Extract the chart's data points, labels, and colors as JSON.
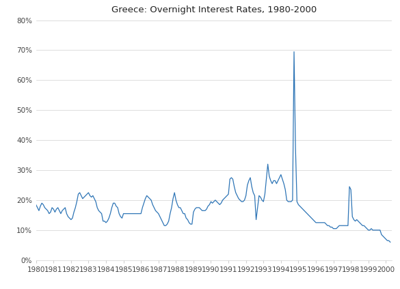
{
  "title": "Greece: Overnight Interest Rates, 1980-2000",
  "line_color": "#2e75b6",
  "background_color": "#ffffff",
  "ylim": [
    0,
    0.8
  ],
  "yticks": [
    0.0,
    0.1,
    0.2,
    0.3,
    0.4,
    0.5,
    0.6,
    0.7,
    0.8
  ],
  "ytick_labels": [
    "0%",
    "10%",
    "20%",
    "30%",
    "40%",
    "50%",
    "60%",
    "70%",
    "80%"
  ],
  "xtick_labels": [
    "1980",
    "1981",
    "1982",
    "1983",
    "1984",
    "1985",
    "1986",
    "1987",
    "1988",
    "1989",
    "1990",
    "1991",
    "1992",
    "1993",
    "1994",
    "1995",
    "1996",
    "1997",
    "1998",
    "1999",
    "2000"
  ],
  "series": [
    1980.0,
    0.185,
    1980.083,
    0.175,
    1980.167,
    0.165,
    1980.25,
    0.18,
    1980.333,
    0.19,
    1980.417,
    0.185,
    1980.5,
    0.175,
    1980.583,
    0.17,
    1980.667,
    0.165,
    1980.75,
    0.155,
    1980.833,
    0.16,
    1980.917,
    0.175,
    1981.0,
    0.17,
    1981.083,
    0.16,
    1981.167,
    0.17,
    1981.25,
    0.175,
    1981.333,
    0.165,
    1981.417,
    0.155,
    1981.5,
    0.165,
    1981.583,
    0.17,
    1981.667,
    0.175,
    1981.75,
    0.155,
    1981.833,
    0.145,
    1981.917,
    0.14,
    1982.0,
    0.135,
    1982.083,
    0.14,
    1982.167,
    0.16,
    1982.25,
    0.175,
    1982.333,
    0.195,
    1982.417,
    0.22,
    1982.5,
    0.225,
    1982.583,
    0.215,
    1982.667,
    0.205,
    1982.75,
    0.21,
    1982.833,
    0.215,
    1982.917,
    0.22,
    1983.0,
    0.225,
    1983.083,
    0.215,
    1983.167,
    0.21,
    1983.25,
    0.215,
    1983.333,
    0.205,
    1983.417,
    0.195,
    1983.5,
    0.175,
    1983.583,
    0.165,
    1983.667,
    0.16,
    1983.75,
    0.155,
    1983.833,
    0.13,
    1983.917,
    0.13,
    1984.0,
    0.125,
    1984.083,
    0.13,
    1984.167,
    0.14,
    1984.25,
    0.155,
    1984.333,
    0.175,
    1984.417,
    0.19,
    1984.5,
    0.19,
    1984.583,
    0.18,
    1984.667,
    0.175,
    1984.75,
    0.155,
    1984.833,
    0.145,
    1984.917,
    0.14,
    1985.0,
    0.155,
    1985.083,
    0.155,
    1985.167,
    0.155,
    1985.25,
    0.155,
    1985.333,
    0.155,
    1985.417,
    0.155,
    1985.5,
    0.155,
    1985.583,
    0.155,
    1985.667,
    0.155,
    1985.75,
    0.155,
    1985.833,
    0.155,
    1985.917,
    0.155,
    1986.0,
    0.155,
    1986.083,
    0.175,
    1986.167,
    0.19,
    1986.25,
    0.205,
    1986.333,
    0.215,
    1986.417,
    0.21,
    1986.5,
    0.205,
    1986.583,
    0.2,
    1986.667,
    0.185,
    1986.75,
    0.175,
    1986.833,
    0.165,
    1986.917,
    0.16,
    1987.0,
    0.155,
    1987.083,
    0.145,
    1987.167,
    0.135,
    1987.25,
    0.125,
    1987.333,
    0.115,
    1987.417,
    0.115,
    1987.5,
    0.12,
    1987.583,
    0.13,
    1987.667,
    0.155,
    1987.75,
    0.175,
    1987.833,
    0.205,
    1987.917,
    0.225,
    1988.0,
    0.2,
    1988.083,
    0.185,
    1988.167,
    0.175,
    1988.25,
    0.175,
    1988.333,
    0.165,
    1988.417,
    0.155,
    1988.5,
    0.155,
    1988.583,
    0.14,
    1988.667,
    0.135,
    1988.75,
    0.125,
    1988.833,
    0.12,
    1988.917,
    0.12,
    1989.0,
    0.16,
    1989.083,
    0.17,
    1989.167,
    0.175,
    1989.25,
    0.175,
    1989.333,
    0.175,
    1989.417,
    0.17,
    1989.5,
    0.165,
    1989.583,
    0.165,
    1989.667,
    0.165,
    1989.75,
    0.17,
    1989.833,
    0.18,
    1989.917,
    0.185,
    1990.0,
    0.195,
    1990.083,
    0.19,
    1990.167,
    0.195,
    1990.25,
    0.2,
    1990.333,
    0.195,
    1990.417,
    0.19,
    1990.5,
    0.185,
    1990.583,
    0.19,
    1990.667,
    0.2,
    1990.75,
    0.205,
    1990.833,
    0.21,
    1990.917,
    0.215,
    1991.0,
    0.22,
    1991.083,
    0.27,
    1991.167,
    0.275,
    1991.25,
    0.27,
    1991.333,
    0.245,
    1991.417,
    0.225,
    1991.5,
    0.215,
    1991.583,
    0.205,
    1991.667,
    0.2,
    1991.75,
    0.195,
    1991.833,
    0.195,
    1991.917,
    0.2,
    1992.0,
    0.215,
    1992.083,
    0.25,
    1992.167,
    0.265,
    1992.25,
    0.275,
    1992.333,
    0.245,
    1992.417,
    0.225,
    1992.5,
    0.215,
    1992.583,
    0.135,
    1992.667,
    0.175,
    1992.75,
    0.215,
    1992.833,
    0.21,
    1992.917,
    0.2,
    1993.0,
    0.195,
    1993.083,
    0.22,
    1993.167,
    0.27,
    1993.25,
    0.32,
    1993.333,
    0.28,
    1993.417,
    0.265,
    1993.5,
    0.255,
    1993.583,
    0.265,
    1993.667,
    0.265,
    1993.75,
    0.255,
    1993.833,
    0.265,
    1993.917,
    0.275,
    1994.0,
    0.285,
    1994.083,
    0.27,
    1994.167,
    0.255,
    1994.25,
    0.235,
    1994.333,
    0.2,
    1994.417,
    0.195,
    1994.5,
    0.195,
    1994.583,
    0.195,
    1994.667,
    0.2,
    1994.75,
    0.695,
    1994.833,
    0.375,
    1994.917,
    0.195,
    1995.0,
    0.185,
    1995.083,
    0.18,
    1995.167,
    0.175,
    1995.25,
    0.17,
    1995.333,
    0.165,
    1995.417,
    0.16,
    1995.5,
    0.155,
    1995.583,
    0.15,
    1995.667,
    0.145,
    1995.75,
    0.14,
    1995.833,
    0.135,
    1995.917,
    0.13,
    1996.0,
    0.125,
    1996.083,
    0.125,
    1996.167,
    0.125,
    1996.25,
    0.125,
    1996.333,
    0.125,
    1996.417,
    0.125,
    1996.5,
    0.125,
    1996.583,
    0.12,
    1996.667,
    0.115,
    1996.75,
    0.115,
    1996.833,
    0.11,
    1996.917,
    0.11,
    1997.0,
    0.105,
    1997.083,
    0.105,
    1997.167,
    0.105,
    1997.25,
    0.11,
    1997.333,
    0.115,
    1997.417,
    0.115,
    1997.5,
    0.115,
    1997.583,
    0.115,
    1997.667,
    0.115,
    1997.75,
    0.115,
    1997.833,
    0.115,
    1997.917,
    0.245,
    1998.0,
    0.235,
    1998.083,
    0.145,
    1998.167,
    0.135,
    1998.25,
    0.13,
    1998.333,
    0.135,
    1998.417,
    0.13,
    1998.5,
    0.125,
    1998.583,
    0.12,
    1998.667,
    0.115,
    1998.75,
    0.115,
    1998.833,
    0.11,
    1998.917,
    0.105,
    1999.0,
    0.1,
    1999.083,
    0.1,
    1999.167,
    0.105,
    1999.25,
    0.1,
    1999.333,
    0.1,
    1999.417,
    0.1,
    1999.5,
    0.1,
    1999.583,
    0.1,
    1999.667,
    0.1,
    1999.75,
    0.085,
    1999.833,
    0.08,
    1999.917,
    0.075,
    2000.0,
    0.07,
    2000.083,
    0.065,
    2000.167,
    0.065,
    2000.25,
    0.06
  ]
}
